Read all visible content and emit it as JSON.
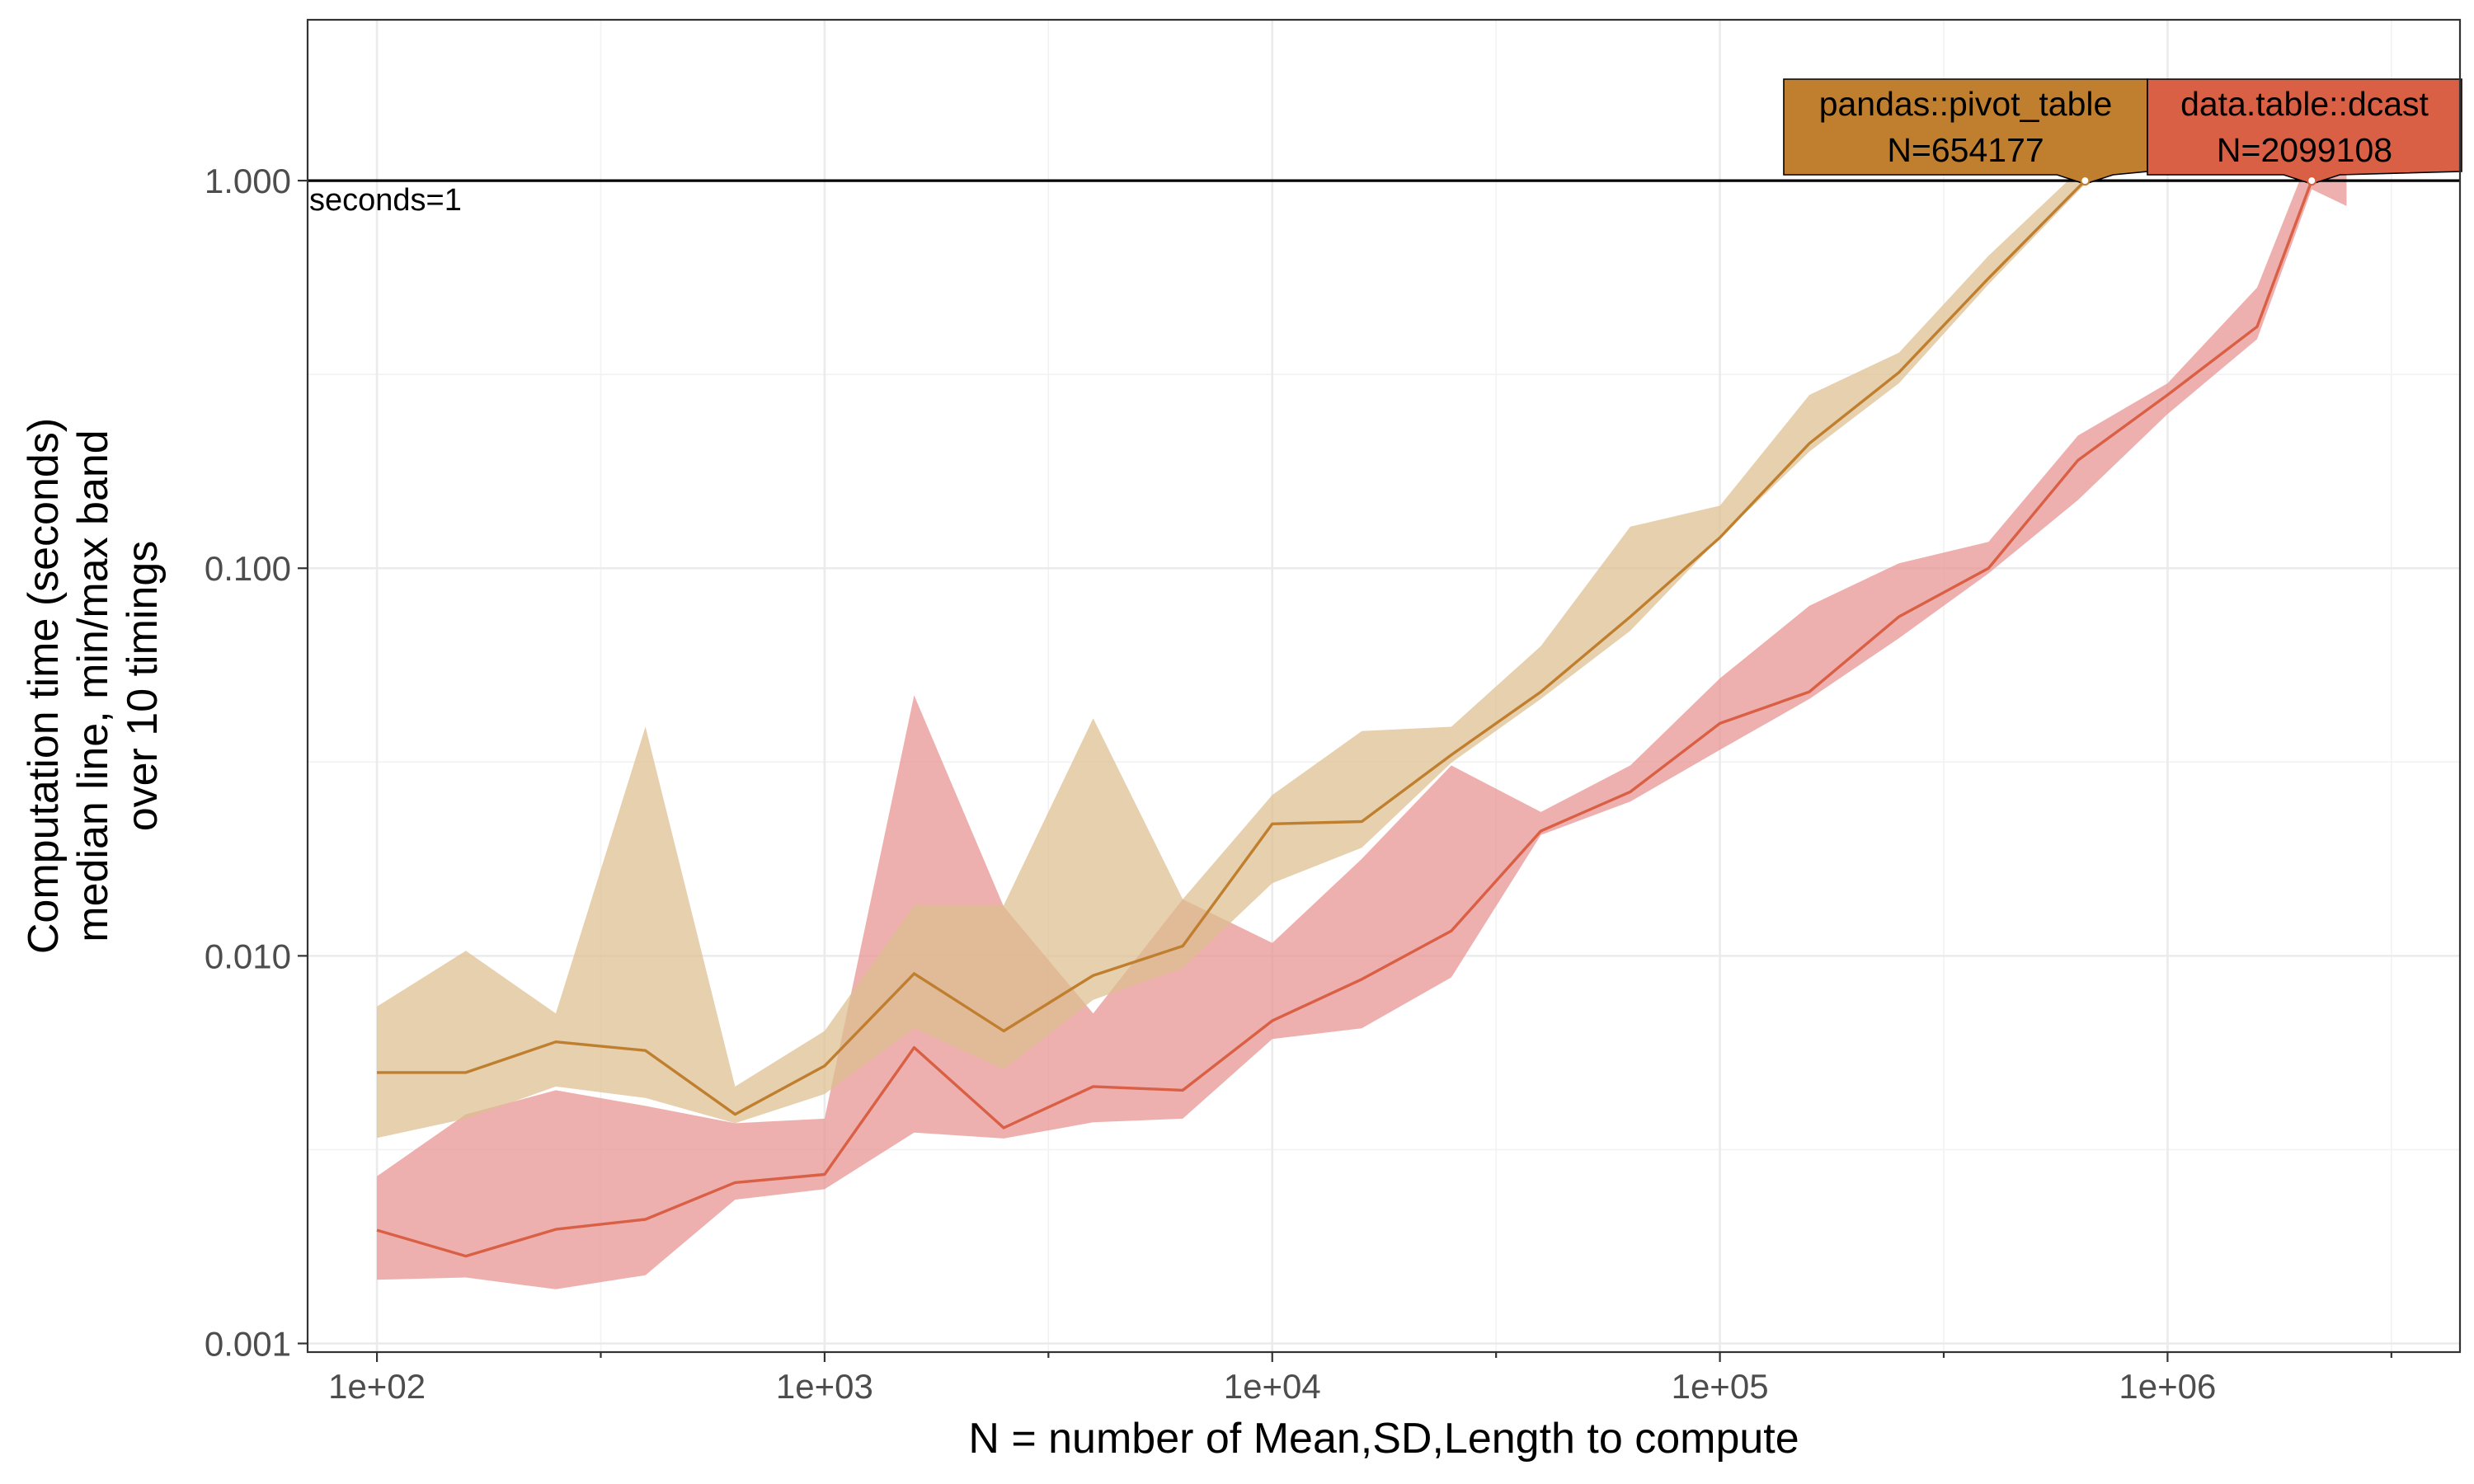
{
  "chart_data": {
    "type": "line",
    "title": "",
    "xlabel": "N = number of Mean,SD,Length to compute",
    "ylabel": [
      "Computation time (seconds)",
      "median line, min/max band",
      "over 10 timings"
    ],
    "x_scale": "log10",
    "y_scale": "log10",
    "xlim": [
      70,
      4500000
    ],
    "ylim": [
      0.00095,
      2.6
    ],
    "x_ticks": [
      100,
      1000,
      10000,
      100000,
      1000000
    ],
    "x_tick_labels": [
      "1e+02",
      "1e+03",
      "1e+04",
      "1e+05",
      "1e+06"
    ],
    "y_ticks": [
      0.001,
      0.01,
      0.1,
      1
    ],
    "y_tick_labels": [
      "0.001",
      "0.010",
      "0.100",
      "1.000"
    ],
    "grid": true,
    "legend": "none",
    "reference_line": {
      "y": 1,
      "label": "seconds=1"
    },
    "series": [
      {
        "name": "data.table::dcast",
        "color": "#D95F45",
        "band_color": "#E8928F",
        "x": [
          100,
          158,
          251,
          398,
          631,
          1000,
          1585,
          2512,
          3981,
          6310,
          10000,
          15849,
          25119,
          39811,
          63096,
          100000,
          158489,
          251189,
          398107,
          630957,
          1000000,
          1584893,
          2099108,
          2511886
        ],
        "median": [
          0.00196,
          0.00168,
          0.00197,
          0.00209,
          0.0026,
          0.00273,
          0.0058,
          0.0036,
          0.0046,
          0.0045,
          0.0068,
          0.0087,
          0.0116,
          0.021,
          0.0265,
          0.0398,
          0.048,
          0.075,
          0.1,
          0.19,
          0.28,
          0.42,
          1.0,
          null
        ],
        "min": [
          0.00146,
          0.00148,
          0.00138,
          0.0015,
          0.00235,
          0.0025,
          0.0035,
          0.00338,
          0.00372,
          0.0038,
          0.0061,
          0.0065,
          0.0088,
          0.0205,
          0.025,
          0.034,
          0.046,
          0.066,
          0.097,
          0.15,
          0.25,
          0.39,
          0.95,
          0.86
        ],
        "max": [
          0.0027,
          0.0039,
          0.0045,
          0.0041,
          0.0037,
          0.0038,
          0.047,
          0.0134,
          0.0071,
          0.014,
          0.0108,
          0.0178,
          0.031,
          0.0235,
          0.031,
          0.052,
          0.08,
          0.103,
          0.117,
          0.22,
          0.3,
          0.53,
          1.2,
          1.25
        ]
      },
      {
        "name": "pandas::pivot_table",
        "color": "#C07F2E",
        "band_color": "#DCBE8F",
        "x": [
          100,
          158,
          251,
          398,
          631,
          1000,
          1585,
          2512,
          3981,
          6310,
          10000,
          15849,
          25119,
          39811,
          63096,
          100000,
          158489,
          251189,
          398107,
          654177
        ],
        "median": [
          0.005,
          0.005,
          0.006,
          0.0057,
          0.0039,
          0.0052,
          0.009,
          0.0064,
          0.0089,
          0.0106,
          0.0219,
          0.0222,
          0.033,
          0.048,
          0.075,
          0.12,
          0.21,
          0.32,
          0.56,
          1.0
        ],
        "min": [
          0.00339,
          0.0038,
          0.0046,
          0.0043,
          0.0037,
          0.0044,
          0.0065,
          0.0051,
          0.0077,
          0.0093,
          0.0154,
          0.019,
          0.0315,
          0.046,
          0.069,
          0.12,
          0.2,
          0.3,
          0.54,
          0.98
        ],
        "max": [
          0.0074,
          0.0103,
          0.0071,
          0.039,
          0.0046,
          0.0064,
          0.0135,
          0.0135,
          0.041,
          0.014,
          0.026,
          0.038,
          0.039,
          0.063,
          0.128,
          0.145,
          0.28,
          0.36,
          0.64,
          1.1
        ]
      }
    ],
    "callouts": [
      {
        "series": "pandas::pivot_table",
        "line1": "pandas::pivot_table",
        "line2": "N=654177",
        "x": 654177,
        "y": 1.0,
        "fill": "#C07F2E"
      },
      {
        "series": "data.table::dcast",
        "line1": "data.table::dcast",
        "line2": "N=2099108",
        "x": 2099108,
        "y": 1.0,
        "fill": "#D95F45"
      }
    ]
  }
}
